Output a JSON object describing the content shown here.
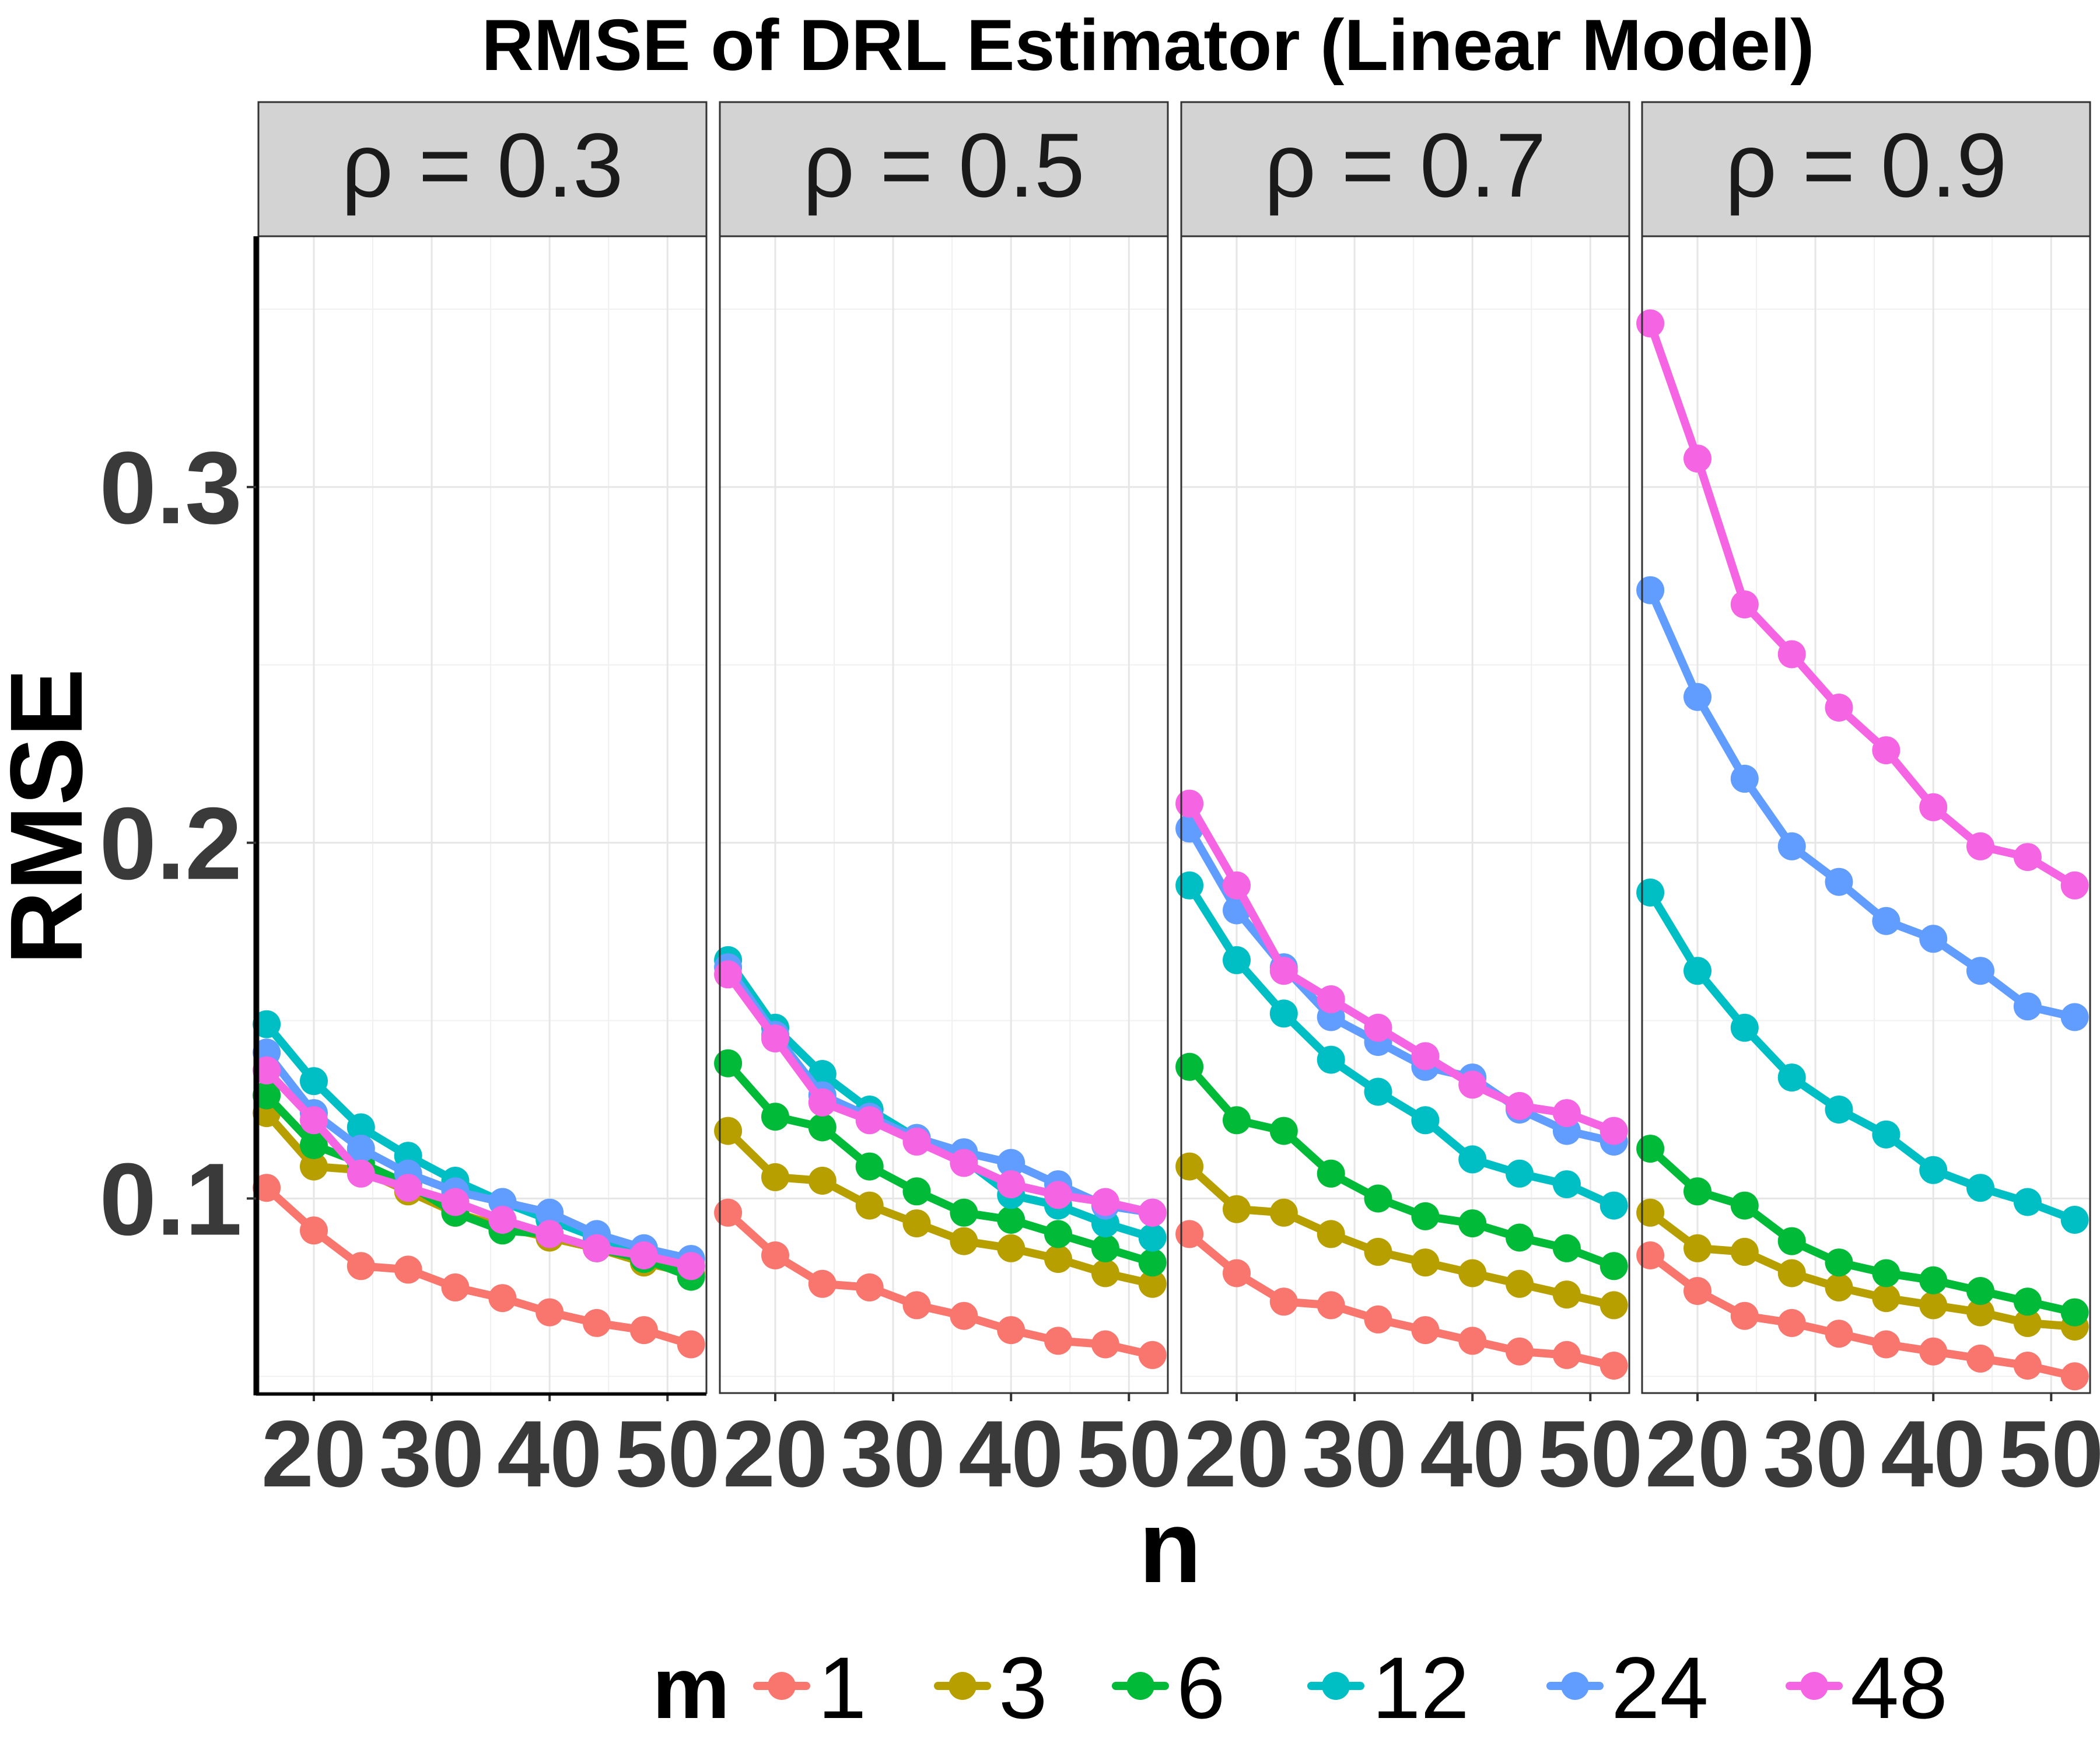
{
  "chart_data": {
    "type": "line",
    "title": "RMSE of DRL Estimator (Linear Model)",
    "xlabel": "n",
    "ylabel": "RMSE",
    "facet_variable": "ρ",
    "facet_separator": "=",
    "x": [
      16,
      20,
      24,
      28,
      32,
      36,
      40,
      44,
      48,
      52
    ],
    "xlim": [
      15.3,
      53.3
    ],
    "ylim": [
      0.0453,
      0.3705
    ],
    "x_ticks": [
      20,
      30,
      40,
      50
    ],
    "y_ticks": [
      0.1,
      0.2,
      0.3
    ],
    "x_tick_labels": [
      "20",
      "30",
      "40",
      "50"
    ],
    "y_tick_labels": [
      "0.1",
      "0.2",
      "0.3"
    ],
    "grid": true,
    "legend": {
      "title": "m",
      "position": "bottom",
      "labels": [
        "1",
        "3",
        "6",
        "12",
        "24",
        "48"
      ]
    },
    "series_colors": [
      "#F8766D",
      "#B79F00",
      "#00BA38",
      "#00BFC4",
      "#619CFF",
      "#F564E3"
    ],
    "panels": [
      {
        "rho": "0.3",
        "series": [
          {
            "name": "1",
            "values": [
              0.103,
              0.091,
              0.081,
              0.08,
              0.075,
              0.072,
              0.068,
              0.065,
              0.063,
              0.059
            ]
          },
          {
            "name": "3",
            "values": [
              0.124,
              0.109,
              0.108,
              0.102,
              0.096,
              0.092,
              0.089,
              0.086,
              0.082,
              0.079
            ]
          },
          {
            "name": "6",
            "values": [
              0.129,
              0.115,
              0.11,
              0.104,
              0.096,
              0.091,
              0.09,
              0.086,
              0.083,
              0.078
            ]
          },
          {
            "name": "12",
            "values": [
              0.149,
              0.133,
              0.12,
              0.112,
              0.105,
              0.099,
              0.094,
              0.089,
              0.085,
              0.081
            ]
          },
          {
            "name": "24",
            "values": [
              0.141,
              0.124,
              0.114,
              0.107,
              0.102,
              0.099,
              0.096,
              0.09,
              0.086,
              0.083
            ]
          },
          {
            "name": "48",
            "values": [
              0.136,
              0.122,
              0.107,
              0.103,
              0.099,
              0.094,
              0.09,
              0.086,
              0.084,
              0.081
            ]
          }
        ]
      },
      {
        "rho": "0.5",
        "series": [
          {
            "name": "1",
            "values": [
              0.096,
              0.084,
              0.076,
              0.075,
              0.07,
              0.067,
              0.063,
              0.06,
              0.059,
              0.056
            ]
          },
          {
            "name": "3",
            "values": [
              0.119,
              0.106,
              0.105,
              0.098,
              0.093,
              0.088,
              0.086,
              0.083,
              0.079,
              0.076
            ]
          },
          {
            "name": "6",
            "values": [
              0.138,
              0.123,
              0.12,
              0.109,
              0.102,
              0.096,
              0.094,
              0.09,
              0.086,
              0.082
            ]
          },
          {
            "name": "12",
            "values": [
              0.167,
              0.148,
              0.135,
              0.125,
              0.117,
              0.111,
              0.101,
              0.098,
              0.093,
              0.089
            ]
          },
          {
            "name": "24",
            "values": [
              0.165,
              0.146,
              0.129,
              0.123,
              0.117,
              0.113,
              0.11,
              0.104,
              0.098,
              0.096
            ]
          },
          {
            "name": "48",
            "values": [
              0.163,
              0.145,
              0.127,
              0.122,
              0.116,
              0.11,
              0.104,
              0.101,
              0.099,
              0.096
            ]
          }
        ]
      },
      {
        "rho": "0.7",
        "series": [
          {
            "name": "1",
            "values": [
              0.09,
              0.079,
              0.071,
              0.07,
              0.066,
              0.063,
              0.06,
              0.057,
              0.056,
              0.053
            ]
          },
          {
            "name": "3",
            "values": [
              0.109,
              0.097,
              0.096,
              0.09,
              0.085,
              0.082,
              0.079,
              0.076,
              0.073,
              0.07
            ]
          },
          {
            "name": "6",
            "values": [
              0.137,
              0.122,
              0.119,
              0.107,
              0.1,
              0.095,
              0.093,
              0.089,
              0.086,
              0.081
            ]
          },
          {
            "name": "12",
            "values": [
              0.188,
              0.167,
              0.152,
              0.139,
              0.13,
              0.122,
              0.111,
              0.107,
              0.104,
              0.098
            ]
          },
          {
            "name": "24",
            "values": [
              0.204,
              0.181,
              0.165,
              0.151,
              0.144,
              0.137,
              0.134,
              0.125,
              0.119,
              0.116
            ]
          },
          {
            "name": "48",
            "values": [
              0.211,
              0.188,
              0.164,
              0.156,
              0.148,
              0.14,
              0.132,
              0.126,
              0.124,
              0.119
            ]
          }
        ]
      },
      {
        "rho": "0.9",
        "series": [
          {
            "name": "1",
            "values": [
              0.084,
              0.074,
              0.067,
              0.065,
              0.062,
              0.059,
              0.057,
              0.055,
              0.053,
              0.05
            ]
          },
          {
            "name": "3",
            "values": [
              0.096,
              0.086,
              0.085,
              0.079,
              0.075,
              0.072,
              0.07,
              0.068,
              0.065,
              0.064
            ]
          },
          {
            "name": "6",
            "values": [
              0.114,
              0.102,
              0.098,
              0.088,
              0.082,
              0.079,
              0.077,
              0.074,
              0.071,
              0.068
            ]
          },
          {
            "name": "12",
            "values": [
              0.186,
              0.164,
              0.148,
              0.134,
              0.125,
              0.118,
              0.108,
              0.103,
              0.099,
              0.094
            ]
          },
          {
            "name": "24",
            "values": [
              0.271,
              0.241,
              0.218,
              0.199,
              0.189,
              0.178,
              0.173,
              0.164,
              0.154,
              0.151
            ]
          },
          {
            "name": "48",
            "values": [
              0.346,
              0.308,
              0.267,
              0.253,
              0.238,
              0.226,
              0.21,
              0.199,
              0.196,
              0.188
            ]
          }
        ]
      }
    ]
  }
}
